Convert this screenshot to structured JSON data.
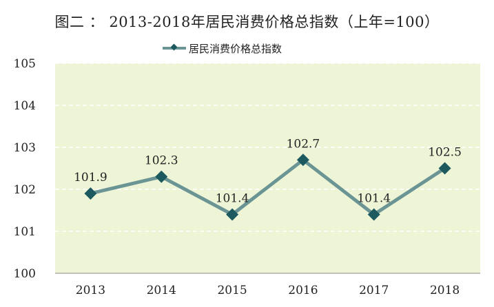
{
  "chart_data": {
    "type": "line",
    "title": "图二 ： 2013-2018年居民消费价格总指数（上年=100）",
    "categories": [
      "2013",
      "2014",
      "2015",
      "2016",
      "2017",
      "2018"
    ],
    "series": [
      {
        "name": "居民消费价格总指数",
        "values": [
          101.9,
          102.3,
          101.4,
          102.7,
          101.4,
          102.5
        ]
      }
    ],
    "data_labels": [
      "101.9",
      "102.3",
      "101.4",
      "102.7",
      "101.4",
      "102.5"
    ],
    "ylim": [
      100,
      105
    ],
    "yticks": [
      "100",
      "101",
      "102",
      "103",
      "104",
      "105"
    ],
    "xlabel": "",
    "ylabel": "",
    "grid": true,
    "legend_position": "top",
    "colors": {
      "plot_background": "#eef4d6",
      "line": "#6b9595",
      "marker": "#1d5a60",
      "gridline": "#ffffff"
    }
  }
}
